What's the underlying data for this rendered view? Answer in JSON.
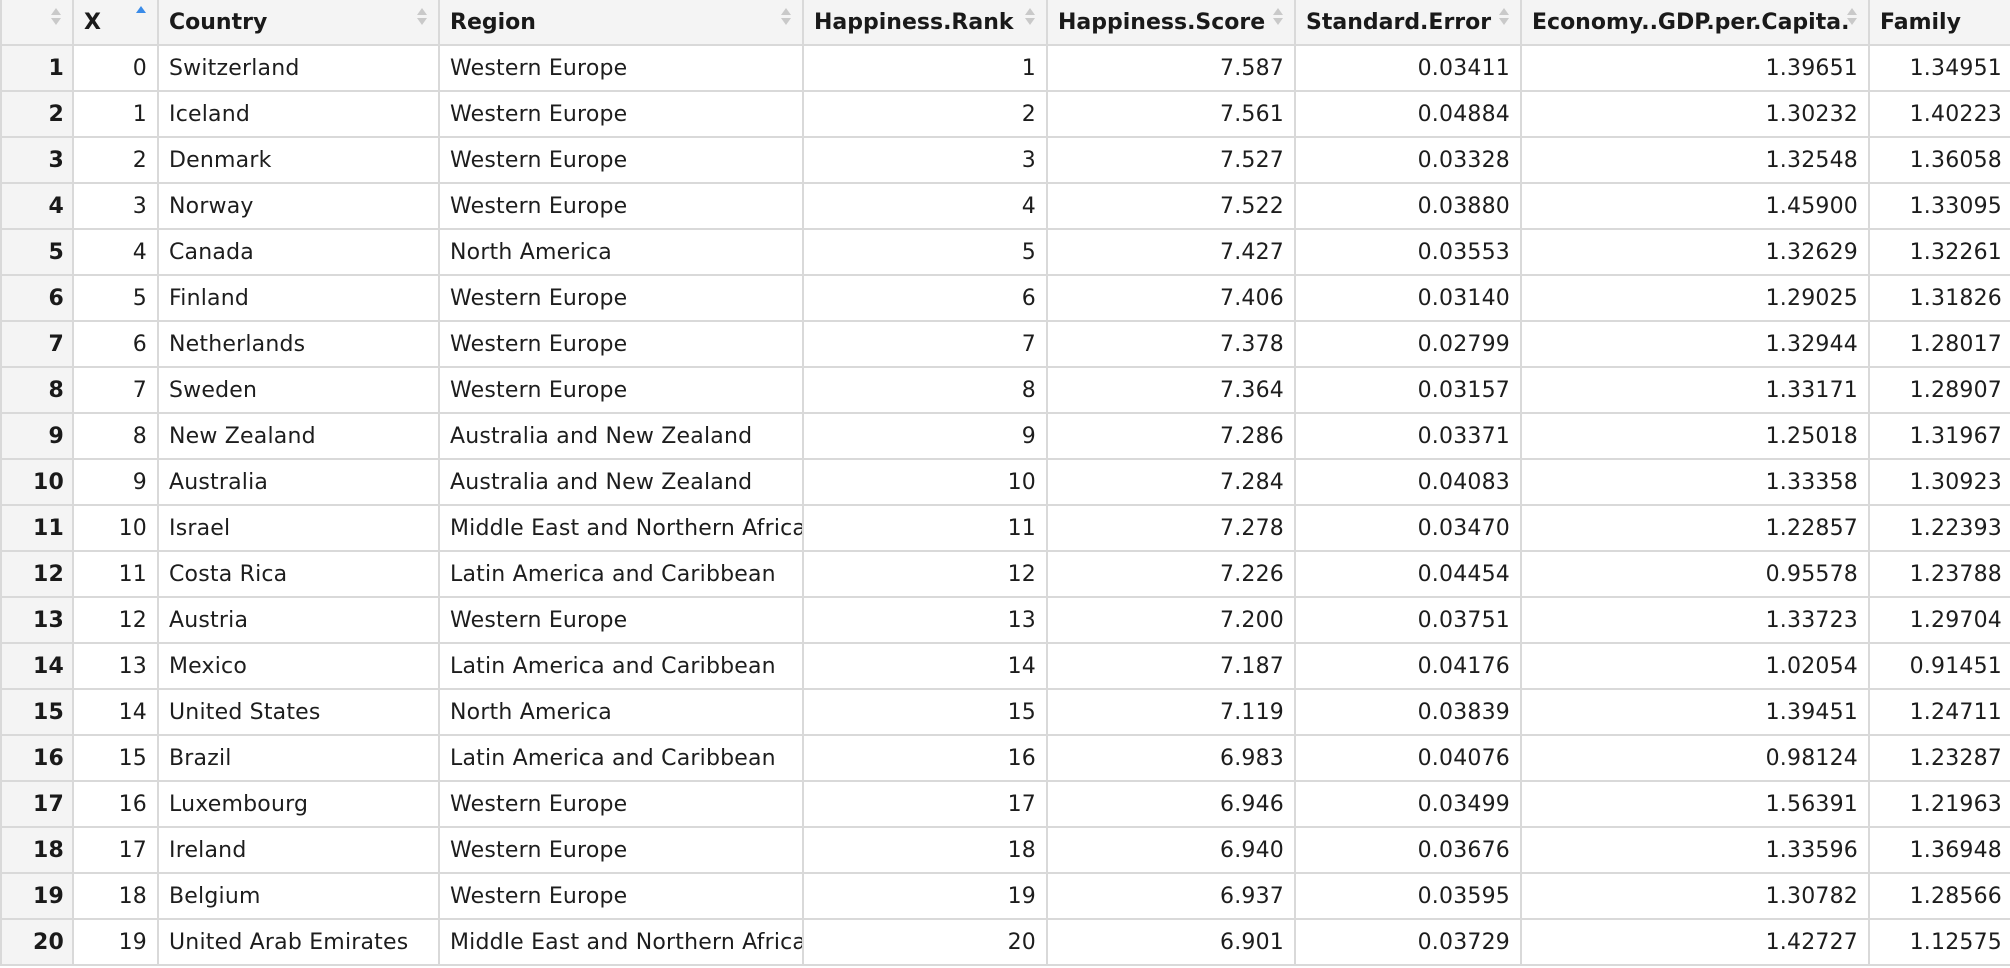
{
  "columns": [
    {
      "key": "rownum",
      "label": ""
    },
    {
      "key": "x",
      "label": "X"
    },
    {
      "key": "country",
      "label": "Country"
    },
    {
      "key": "region",
      "label": "Region"
    },
    {
      "key": "rank",
      "label": "Happiness.Rank"
    },
    {
      "key": "score",
      "label": "Happiness.Score"
    },
    {
      "key": "se",
      "label": "Standard.Error"
    },
    {
      "key": "econ",
      "label": "Economy..GDP.per.Capita."
    },
    {
      "key": "family",
      "label": "Family"
    }
  ],
  "sort": {
    "column": "X",
    "direction": "ascending"
  },
  "colors": {
    "sort_active": "#3a8be8",
    "sort_inactive": "#c9c9c9",
    "header_bg": "#f4f4f4",
    "grid_line": "#d9d9d9"
  },
  "rows": [
    {
      "rownum": "1",
      "x": "0",
      "country": "Switzerland",
      "region": "Western Europe",
      "rank": "1",
      "score": "7.587",
      "se": "0.03411",
      "econ": "1.39651",
      "family": "1.34951"
    },
    {
      "rownum": "2",
      "x": "1",
      "country": "Iceland",
      "region": "Western Europe",
      "rank": "2",
      "score": "7.561",
      "se": "0.04884",
      "econ": "1.30232",
      "family": "1.40223"
    },
    {
      "rownum": "3",
      "x": "2",
      "country": "Denmark",
      "region": "Western Europe",
      "rank": "3",
      "score": "7.527",
      "se": "0.03328",
      "econ": "1.32548",
      "family": "1.36058"
    },
    {
      "rownum": "4",
      "x": "3",
      "country": "Norway",
      "region": "Western Europe",
      "rank": "4",
      "score": "7.522",
      "se": "0.03880",
      "econ": "1.45900",
      "family": "1.33095"
    },
    {
      "rownum": "5",
      "x": "4",
      "country": "Canada",
      "region": "North America",
      "rank": "5",
      "score": "7.427",
      "se": "0.03553",
      "econ": "1.32629",
      "family": "1.32261"
    },
    {
      "rownum": "6",
      "x": "5",
      "country": "Finland",
      "region": "Western Europe",
      "rank": "6",
      "score": "7.406",
      "se": "0.03140",
      "econ": "1.29025",
      "family": "1.31826"
    },
    {
      "rownum": "7",
      "x": "6",
      "country": "Netherlands",
      "region": "Western Europe",
      "rank": "7",
      "score": "7.378",
      "se": "0.02799",
      "econ": "1.32944",
      "family": "1.28017"
    },
    {
      "rownum": "8",
      "x": "7",
      "country": "Sweden",
      "region": "Western Europe",
      "rank": "8",
      "score": "7.364",
      "se": "0.03157",
      "econ": "1.33171",
      "family": "1.28907"
    },
    {
      "rownum": "9",
      "x": "8",
      "country": "New Zealand",
      "region": "Australia and New Zealand",
      "rank": "9",
      "score": "7.286",
      "se": "0.03371",
      "econ": "1.25018",
      "family": "1.31967"
    },
    {
      "rownum": "10",
      "x": "9",
      "country": "Australia",
      "region": "Australia and New Zealand",
      "rank": "10",
      "score": "7.284",
      "se": "0.04083",
      "econ": "1.33358",
      "family": "1.30923"
    },
    {
      "rownum": "11",
      "x": "10",
      "country": "Israel",
      "region": "Middle East and Northern Africa",
      "rank": "11",
      "score": "7.278",
      "se": "0.03470",
      "econ": "1.22857",
      "family": "1.22393"
    },
    {
      "rownum": "12",
      "x": "11",
      "country": "Costa Rica",
      "region": "Latin America and Caribbean",
      "rank": "12",
      "score": "7.226",
      "se": "0.04454",
      "econ": "0.95578",
      "family": "1.23788"
    },
    {
      "rownum": "13",
      "x": "12",
      "country": "Austria",
      "region": "Western Europe",
      "rank": "13",
      "score": "7.200",
      "se": "0.03751",
      "econ": "1.33723",
      "family": "1.29704"
    },
    {
      "rownum": "14",
      "x": "13",
      "country": "Mexico",
      "region": "Latin America and Caribbean",
      "rank": "14",
      "score": "7.187",
      "se": "0.04176",
      "econ": "1.02054",
      "family": "0.91451"
    },
    {
      "rownum": "15",
      "x": "14",
      "country": "United States",
      "region": "North America",
      "rank": "15",
      "score": "7.119",
      "se": "0.03839",
      "econ": "1.39451",
      "family": "1.24711"
    },
    {
      "rownum": "16",
      "x": "15",
      "country": "Brazil",
      "region": "Latin America and Caribbean",
      "rank": "16",
      "score": "6.983",
      "se": "0.04076",
      "econ": "0.98124",
      "family": "1.23287"
    },
    {
      "rownum": "17",
      "x": "16",
      "country": "Luxembourg",
      "region": "Western Europe",
      "rank": "17",
      "score": "6.946",
      "se": "0.03499",
      "econ": "1.56391",
      "family": "1.21963"
    },
    {
      "rownum": "18",
      "x": "17",
      "country": "Ireland",
      "region": "Western Europe",
      "rank": "18",
      "score": "6.940",
      "se": "0.03676",
      "econ": "1.33596",
      "family": "1.36948"
    },
    {
      "rownum": "19",
      "x": "18",
      "country": "Belgium",
      "region": "Western Europe",
      "rank": "19",
      "score": "6.937",
      "se": "0.03595",
      "econ": "1.30782",
      "family": "1.28566"
    },
    {
      "rownum": "20",
      "x": "19",
      "country": "United Arab Emirates",
      "region": "Middle East and Northern Africa",
      "rank": "20",
      "score": "6.901",
      "se": "0.03729",
      "econ": "1.42727",
      "family": "1.12575"
    }
  ]
}
